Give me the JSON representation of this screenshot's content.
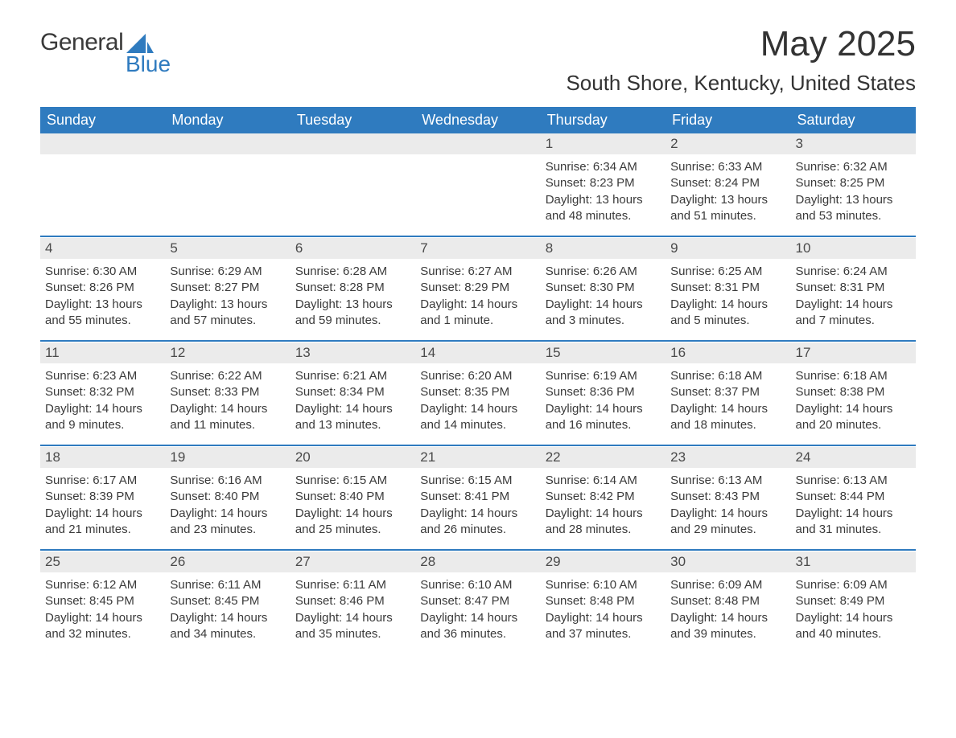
{
  "logo": {
    "text1": "General",
    "text2": "Blue"
  },
  "title": "May 2025",
  "subtitle": "South Shore, Kentucky, United States",
  "colors": {
    "header_bg": "#2f7bbf",
    "header_fg": "#ffffff",
    "daynum_bg": "#ebebeb",
    "text": "#3a3a3a",
    "rule": "#2f7bbf",
    "page_bg": "#ffffff",
    "logo_blue": "#2f7bbf"
  },
  "fonts": {
    "title_size": 44,
    "subtitle_size": 26,
    "header_size": 18,
    "daynum_size": 17,
    "body_size": 15
  },
  "day_headers": [
    "Sunday",
    "Monday",
    "Tuesday",
    "Wednesday",
    "Thursday",
    "Friday",
    "Saturday"
  ],
  "weeks": [
    [
      null,
      null,
      null,
      null,
      {
        "n": "1",
        "sunrise": "6:34 AM",
        "sunset": "8:23 PM",
        "daylight": "13 hours and 48 minutes."
      },
      {
        "n": "2",
        "sunrise": "6:33 AM",
        "sunset": "8:24 PM",
        "daylight": "13 hours and 51 minutes."
      },
      {
        "n": "3",
        "sunrise": "6:32 AM",
        "sunset": "8:25 PM",
        "daylight": "13 hours and 53 minutes."
      }
    ],
    [
      {
        "n": "4",
        "sunrise": "6:30 AM",
        "sunset": "8:26 PM",
        "daylight": "13 hours and 55 minutes."
      },
      {
        "n": "5",
        "sunrise": "6:29 AM",
        "sunset": "8:27 PM",
        "daylight": "13 hours and 57 minutes."
      },
      {
        "n": "6",
        "sunrise": "6:28 AM",
        "sunset": "8:28 PM",
        "daylight": "13 hours and 59 minutes."
      },
      {
        "n": "7",
        "sunrise": "6:27 AM",
        "sunset": "8:29 PM",
        "daylight": "14 hours and 1 minute."
      },
      {
        "n": "8",
        "sunrise": "6:26 AM",
        "sunset": "8:30 PM",
        "daylight": "14 hours and 3 minutes."
      },
      {
        "n": "9",
        "sunrise": "6:25 AM",
        "sunset": "8:31 PM",
        "daylight": "14 hours and 5 minutes."
      },
      {
        "n": "10",
        "sunrise": "6:24 AM",
        "sunset": "8:31 PM",
        "daylight": "14 hours and 7 minutes."
      }
    ],
    [
      {
        "n": "11",
        "sunrise": "6:23 AM",
        "sunset": "8:32 PM",
        "daylight": "14 hours and 9 minutes."
      },
      {
        "n": "12",
        "sunrise": "6:22 AM",
        "sunset": "8:33 PM",
        "daylight": "14 hours and 11 minutes."
      },
      {
        "n": "13",
        "sunrise": "6:21 AM",
        "sunset": "8:34 PM",
        "daylight": "14 hours and 13 minutes."
      },
      {
        "n": "14",
        "sunrise": "6:20 AM",
        "sunset": "8:35 PM",
        "daylight": "14 hours and 14 minutes."
      },
      {
        "n": "15",
        "sunrise": "6:19 AM",
        "sunset": "8:36 PM",
        "daylight": "14 hours and 16 minutes."
      },
      {
        "n": "16",
        "sunrise": "6:18 AM",
        "sunset": "8:37 PM",
        "daylight": "14 hours and 18 minutes."
      },
      {
        "n": "17",
        "sunrise": "6:18 AM",
        "sunset": "8:38 PM",
        "daylight": "14 hours and 20 minutes."
      }
    ],
    [
      {
        "n": "18",
        "sunrise": "6:17 AM",
        "sunset": "8:39 PM",
        "daylight": "14 hours and 21 minutes."
      },
      {
        "n": "19",
        "sunrise": "6:16 AM",
        "sunset": "8:40 PM",
        "daylight": "14 hours and 23 minutes."
      },
      {
        "n": "20",
        "sunrise": "6:15 AM",
        "sunset": "8:40 PM",
        "daylight": "14 hours and 25 minutes."
      },
      {
        "n": "21",
        "sunrise": "6:15 AM",
        "sunset": "8:41 PM",
        "daylight": "14 hours and 26 minutes."
      },
      {
        "n": "22",
        "sunrise": "6:14 AM",
        "sunset": "8:42 PM",
        "daylight": "14 hours and 28 minutes."
      },
      {
        "n": "23",
        "sunrise": "6:13 AM",
        "sunset": "8:43 PM",
        "daylight": "14 hours and 29 minutes."
      },
      {
        "n": "24",
        "sunrise": "6:13 AM",
        "sunset": "8:44 PM",
        "daylight": "14 hours and 31 minutes."
      }
    ],
    [
      {
        "n": "25",
        "sunrise": "6:12 AM",
        "sunset": "8:45 PM",
        "daylight": "14 hours and 32 minutes."
      },
      {
        "n": "26",
        "sunrise": "6:11 AM",
        "sunset": "8:45 PM",
        "daylight": "14 hours and 34 minutes."
      },
      {
        "n": "27",
        "sunrise": "6:11 AM",
        "sunset": "8:46 PM",
        "daylight": "14 hours and 35 minutes."
      },
      {
        "n": "28",
        "sunrise": "6:10 AM",
        "sunset": "8:47 PM",
        "daylight": "14 hours and 36 minutes."
      },
      {
        "n": "29",
        "sunrise": "6:10 AM",
        "sunset": "8:48 PM",
        "daylight": "14 hours and 37 minutes."
      },
      {
        "n": "30",
        "sunrise": "6:09 AM",
        "sunset": "8:48 PM",
        "daylight": "14 hours and 39 minutes."
      },
      {
        "n": "31",
        "sunrise": "6:09 AM",
        "sunset": "8:49 PM",
        "daylight": "14 hours and 40 minutes."
      }
    ]
  ],
  "labels": {
    "sunrise_prefix": "Sunrise: ",
    "sunset_prefix": "Sunset: ",
    "daylight_prefix": "Daylight: "
  }
}
